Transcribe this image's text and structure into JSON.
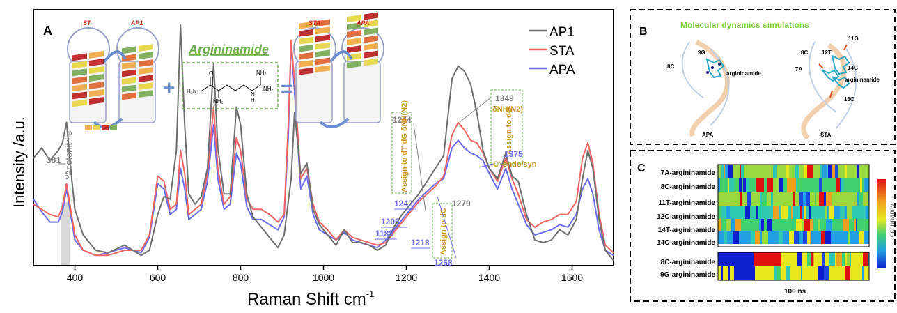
{
  "panelA": {
    "letter": "A",
    "chart_data": {
      "type": "line",
      "xlabel": "Raman Shift cm",
      "xlabel_sup": "-1",
      "ylabel": "Intensity /a.u.",
      "xlim": [
        300,
        1700
      ],
      "ylim": [
        0,
        1
      ],
      "xticks": [
        400,
        600,
        800,
        1000,
        1200,
        1400,
        1600
      ],
      "legend_position": "top-right",
      "series": [
        {
          "name": "AP1",
          "color": "#6e6e6e",
          "x": [
            300,
            320,
            340,
            360,
            370,
            380,
            390,
            400,
            420,
            450,
            480,
            520,
            560,
            580,
            600,
            615,
            630,
            645,
            655,
            665,
            675,
            690,
            705,
            720,
            735,
            745,
            760,
            775,
            790,
            800,
            815,
            830,
            850,
            870,
            890,
            905,
            915,
            922,
            930,
            945,
            960,
            975,
            990,
            1010,
            1030,
            1050,
            1070,
            1090,
            1110,
            1130,
            1150,
            1170,
            1190,
            1210,
            1230,
            1250,
            1270,
            1290,
            1310,
            1325,
            1340,
            1355,
            1370,
            1385,
            1400,
            1420,
            1440,
            1455,
            1470,
            1490,
            1510,
            1530,
            1550,
            1570,
            1590,
            1610,
            1625,
            1638,
            1650,
            1665,
            1680,
            1700
          ],
          "y": [
            0.42,
            0.46,
            0.41,
            0.45,
            0.48,
            0.56,
            0.38,
            0.22,
            0.12,
            0.06,
            0.05,
            0.08,
            0.04,
            0.06,
            0.2,
            0.27,
            0.26,
            0.45,
            0.94,
            0.55,
            0.28,
            0.24,
            0.27,
            0.38,
            0.79,
            0.46,
            0.28,
            0.28,
            0.62,
            0.55,
            0.28,
            0.19,
            0.15,
            0.11,
            0.07,
            0.12,
            0.25,
            0.34,
            0.6,
            0.36,
            0.4,
            0.22,
            0.16,
            0.12,
            0.08,
            0.14,
            0.09,
            0.09,
            0.08,
            0.06,
            0.08,
            0.15,
            0.2,
            0.24,
            0.28,
            0.33,
            0.38,
            0.43,
            0.73,
            0.78,
            0.76,
            0.71,
            0.6,
            0.45,
            0.38,
            0.34,
            0.44,
            0.35,
            0.33,
            0.2,
            0.1,
            0.09,
            0.1,
            0.14,
            0.12,
            0.18,
            0.34,
            0.45,
            0.38,
            0.18,
            0.06,
            0.02
          ]
        },
        {
          "name": "STA",
          "color": "#f06464",
          "x": [
            300,
            320,
            340,
            360,
            370,
            380,
            390,
            400,
            420,
            450,
            480,
            520,
            560,
            580,
            600,
            615,
            630,
            645,
            655,
            665,
            675,
            690,
            705,
            720,
            735,
            745,
            760,
            775,
            790,
            800,
            815,
            830,
            850,
            870,
            890,
            905,
            915,
            922,
            930,
            945,
            960,
            975,
            990,
            1010,
            1030,
            1050,
            1070,
            1090,
            1110,
            1130,
            1150,
            1170,
            1190,
            1210,
            1230,
            1250,
            1270,
            1290,
            1310,
            1325,
            1340,
            1355,
            1370,
            1385,
            1400,
            1420,
            1440,
            1455,
            1470,
            1490,
            1510,
            1530,
            1550,
            1570,
            1590,
            1610,
            1625,
            1638,
            1650,
            1665,
            1680,
            1700
          ],
          "y": [
            0.24,
            0.22,
            0.2,
            0.19,
            0.23,
            0.32,
            0.22,
            0.12,
            0.06,
            0.04,
            0.04,
            0.06,
            0.06,
            0.12,
            0.35,
            0.33,
            0.22,
            0.24,
            0.45,
            0.36,
            0.2,
            0.22,
            0.24,
            0.36,
            0.62,
            0.38,
            0.24,
            0.27,
            0.5,
            0.45,
            0.26,
            0.22,
            0.22,
            0.2,
            0.17,
            0.2,
            0.55,
            0.88,
            0.72,
            0.34,
            0.38,
            0.24,
            0.17,
            0.14,
            0.1,
            0.14,
            0.11,
            0.1,
            0.09,
            0.08,
            0.09,
            0.13,
            0.17,
            0.21,
            0.25,
            0.28,
            0.31,
            0.35,
            0.51,
            0.56,
            0.53,
            0.49,
            0.48,
            0.44,
            0.38,
            0.33,
            0.42,
            0.34,
            0.28,
            0.18,
            0.15,
            0.17,
            0.18,
            0.2,
            0.2,
            0.25,
            0.42,
            0.48,
            0.4,
            0.2,
            0.08,
            0.05
          ]
        },
        {
          "name": "APA",
          "color": "#6b6bf0",
          "x": [
            300,
            320,
            340,
            360,
            370,
            380,
            390,
            400,
            420,
            450,
            480,
            520,
            560,
            580,
            600,
            615,
            630,
            645,
            655,
            665,
            675,
            690,
            705,
            720,
            735,
            745,
            760,
            775,
            790,
            800,
            815,
            830,
            850,
            870,
            890,
            905,
            915,
            922,
            930,
            945,
            960,
            975,
            990,
            1010,
            1030,
            1050,
            1070,
            1090,
            1110,
            1130,
            1150,
            1170,
            1190,
            1210,
            1230,
            1250,
            1270,
            1290,
            1310,
            1325,
            1340,
            1355,
            1370,
            1385,
            1400,
            1420,
            1440,
            1455,
            1470,
            1490,
            1510,
            1530,
            1550,
            1570,
            1590,
            1610,
            1625,
            1638,
            1650,
            1665,
            1680,
            1700
          ],
          "y": [
            0.26,
            0.21,
            0.17,
            0.17,
            0.21,
            0.3,
            0.2,
            0.1,
            0.06,
            0.04,
            0.05,
            0.07,
            0.05,
            0.11,
            0.32,
            0.3,
            0.2,
            0.22,
            0.38,
            0.3,
            0.18,
            0.2,
            0.22,
            0.33,
            0.55,
            0.34,
            0.22,
            0.24,
            0.44,
            0.4,
            0.23,
            0.18,
            0.18,
            0.16,
            0.14,
            0.19,
            0.5,
            0.87,
            0.68,
            0.3,
            0.35,
            0.2,
            0.14,
            0.12,
            0.1,
            0.13,
            0.1,
            0.09,
            0.08,
            0.07,
            0.1,
            0.14,
            0.18,
            0.22,
            0.26,
            0.29,
            0.32,
            0.34,
            0.46,
            0.49,
            0.46,
            0.44,
            0.43,
            0.41,
            0.36,
            0.3,
            0.38,
            0.3,
            0.24,
            0.16,
            0.12,
            0.13,
            0.14,
            0.16,
            0.15,
            0.2,
            0.3,
            0.34,
            0.28,
            0.14,
            0.06,
            0.04
          ]
        }
      ],
      "annotations": [
        {
          "text": "381",
          "color": "#808080"
        },
        {
          "text": "Acetonitrile",
          "color": "#808080"
        },
        {
          "text": "1244",
          "color": "#808080"
        },
        {
          "text": "Assign to dT dG δNH(N2)",
          "color": "#c8961e"
        },
        {
          "text": "1242",
          "color": "#6b6bf0"
        },
        {
          "text": "1205",
          "color": "#6b6bf0"
        },
        {
          "text": "1188",
          "color": "#6b6bf0"
        },
        {
          "text": "1218",
          "color": "#6b6bf0"
        },
        {
          "text": "1268",
          "color": "#6b6bf0"
        },
        {
          "text": "1270",
          "color": "#808080"
        },
        {
          "text": "Assign to dC",
          "color": "#c8961e"
        },
        {
          "text": "1349",
          "color": "#808080"
        },
        {
          "text": "δNH(N2)",
          "color": "#c8961e"
        },
        {
          "text": "Assign to dG",
          "color": "#c8961e"
        },
        {
          "text": "1375",
          "color": "#6b6bf0"
        },
        {
          "text": "C'-endo/syn",
          "color": "#c8961e"
        }
      ]
    },
    "inset": {
      "label_ST": "ST",
      "label_AP1": "AP1",
      "label_STA": "STA",
      "label_APA": "APA",
      "argininamide_title": "Argininamide",
      "plus": "+",
      "equals": "=",
      "h2n": "H₂N",
      "nh2": "NH₂",
      "nh": "NH",
      "o": "O",
      "n": "N",
      "nh2b": "NH₂",
      "nh2c": "NH₂",
      "h": "H"
    }
  },
  "panelB": {
    "letter": "B",
    "title": "Molecular dynamics simulations",
    "labels_left": [
      "9G",
      "8C",
      "argininamide",
      "APA"
    ],
    "labels_right": [
      "11G",
      "8C",
      "12T",
      "7A",
      "14G",
      "argininamide",
      "16C",
      "STA"
    ]
  },
  "panelC": {
    "letter": "C",
    "rows_top": [
      "7A-argininamide",
      "8C-argininamide",
      "11T-argininamide",
      "12C-argininamide",
      "14T-argininamide",
      "14C-argininamide"
    ],
    "rows_bottom": [
      "8C-argininamide",
      "9G-argininamide"
    ],
    "xlabel": "100 ns",
    "colorbar_label": "occupancy"
  }
}
